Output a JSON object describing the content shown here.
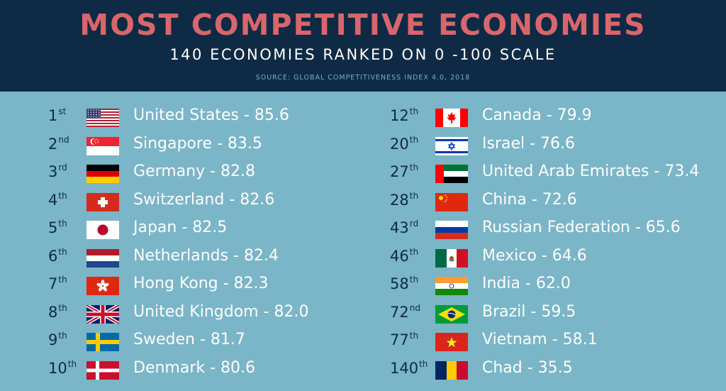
{
  "header": {
    "title": "MOST COMPETITIVE ECONOMIES",
    "subtitle": "140 ECONOMIES RANKED ON 0 -100 SCALE",
    "source": "SOURCE: GLOBAL COMPETITIVENESS INDEX 4.0, 2018"
  },
  "left": [
    {
      "rank": "1",
      "suffix": "st",
      "flag": "us-flag-icon",
      "label": "United States - 85.6"
    },
    {
      "rank": "2",
      "suffix": "nd",
      "flag": "singapore-flag-icon",
      "label": "Singapore - 83.5"
    },
    {
      "rank": "3",
      "suffix": "rd",
      "flag": "germany-flag-icon",
      "label": "Germany - 82.8"
    },
    {
      "rank": "4",
      "suffix": "th",
      "flag": "switzerland-flag-icon",
      "label": "Switzerland - 82.6"
    },
    {
      "rank": "5",
      "suffix": "th",
      "flag": "japan-flag-icon",
      "label": "Japan - 82.5"
    },
    {
      "rank": "6",
      "suffix": "th",
      "flag": "netherlands-flag-icon",
      "label": "Netherlands - 82.4"
    },
    {
      "rank": "7",
      "suffix": "th",
      "flag": "hong-kong-flag-icon",
      "label": "Hong Kong - 82.3"
    },
    {
      "rank": "8",
      "suffix": "th",
      "flag": "uk-flag-icon",
      "label": "United Kingdom - 82.0"
    },
    {
      "rank": "9",
      "suffix": "th",
      "flag": "sweden-flag-icon",
      "label": "Sweden - 81.7"
    },
    {
      "rank": "10",
      "suffix": "th",
      "flag": "denmark-flag-icon",
      "label": "Denmark - 80.6"
    }
  ],
  "right": [
    {
      "rank": "12",
      "suffix": "th",
      "flag": "canada-flag-icon",
      "label": "Canada - 79.9"
    },
    {
      "rank": "20",
      "suffix": "th",
      "flag": "israel-flag-icon",
      "label": "Israel - 76.6"
    },
    {
      "rank": "27",
      "suffix": "th",
      "flag": "uae-flag-icon",
      "label": "United Arab Emirates - 73.4"
    },
    {
      "rank": "28",
      "suffix": "th",
      "flag": "china-flag-icon",
      "label": "China - 72.6"
    },
    {
      "rank": "43",
      "suffix": "rd",
      "flag": "russia-flag-icon",
      "label": "Russian Federation - 65.6"
    },
    {
      "rank": "46",
      "suffix": "th",
      "flag": "mexico-flag-icon",
      "label": "Mexico - 64.6"
    },
    {
      "rank": "58",
      "suffix": "th",
      "flag": "india-flag-icon",
      "label": "India - 62.0"
    },
    {
      "rank": "72",
      "suffix": "nd",
      "flag": "brazil-flag-icon",
      "label": "Brazil - 59.5"
    },
    {
      "rank": "77",
      "suffix": "th",
      "flag": "vietnam-flag-icon",
      "label": "Vietnam - 58.1"
    },
    {
      "rank": "140",
      "suffix": "th",
      "flag": "chad-flag-icon",
      "label": "Chad - 35.5"
    }
  ]
}
